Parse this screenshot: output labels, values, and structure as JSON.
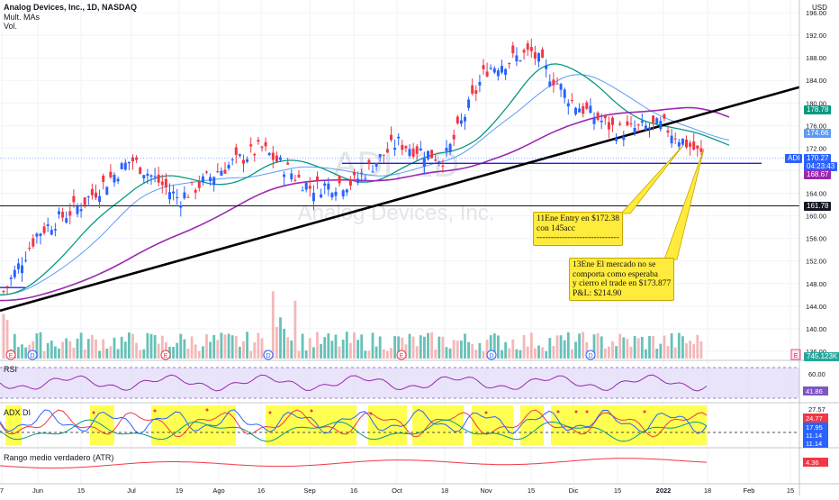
{
  "header": {
    "title": "Analog Devices, Inc., 1D, NASDAQ",
    "indicators": [
      "Mult. MAs",
      "Vol."
    ],
    "currency": "USD",
    "watermark_symbol": "ADI, 1D",
    "watermark_name": "Analog Devices, Inc."
  },
  "price_axis": {
    "ticks": [
      "196.00",
      "192.00",
      "188.00",
      "184.00",
      "180.00",
      "176.00",
      "172.00",
      "168.00",
      "164.00",
      "160.00",
      "156.00",
      "152.00",
      "148.00",
      "144.00",
      "140.00",
      "136.00"
    ],
    "ylim": [
      134,
      198
    ]
  },
  "time_axis": {
    "ticks": [
      "7",
      "Jun",
      "15",
      "Jul",
      "19",
      "Ago",
      "16",
      "Sep",
      "16",
      "Oct",
      "18",
      "Nov",
      "15",
      "Dic",
      "15",
      "2022",
      "18",
      "Feb",
      "15"
    ]
  },
  "price_labels": {
    "ma_top": "178.78",
    "ma_mid": "174.66",
    "symbol": "ADI",
    "last_price": "170.27",
    "countdown": "04:23:43",
    "ma_long": "168.67",
    "h_level": "161.78",
    "volume": "745.123K"
  },
  "callouts": {
    "entry": "11Ene Entry en $172.38\ncon 145acc\n-----------------------------",
    "exit": "13Ene El mercado no se\ncomporta como esperaba\ny cierro el trade en $173.877\nP&L: $214.90"
  },
  "panes": {
    "rsi": {
      "label": "RSI",
      "ticks": [
        "60.00",
        "41.86"
      ],
      "value": "41.86",
      "color": "#7e57c2"
    },
    "adx": {
      "label": "ADX DI",
      "ticks": [
        "27.57",
        "24.77",
        "17.95",
        "11.14",
        "11.14"
      ],
      "colors": [
        "#000000",
        "#f23645",
        "#2962ff",
        "#131722",
        "#131722"
      ]
    },
    "atr": {
      "label": "Rango medio verdadero (ATR)",
      "value": "4.36",
      "color": "#f23645"
    }
  },
  "events": {
    "earnings_marker": "E",
    "dividend_marker": "D"
  },
  "colors": {
    "up": "#2962ff",
    "down": "#f23645",
    "ma_green": "#089981",
    "ma_blue": "#5b9cf6",
    "ma_purple": "#9c27b0",
    "trend": "#000000",
    "hline": "#1e22e8",
    "vol_up": "#26a69a",
    "vol_down": "#ef9a9a",
    "adx_band": "#ffff33",
    "rsi_band": "#d7cdf5"
  },
  "chart_data": {
    "type": "line",
    "title": "Analog Devices, Inc., 1D, NASDAQ",
    "ylim": [
      134,
      198
    ],
    "x": [
      "2021-05-07",
      "2021-06-01",
      "2021-06-15",
      "2021-07-01",
      "2021-07-19",
      "2021-08-02",
      "2021-08-16",
      "2021-09-01",
      "2021-09-16",
      "2021-10-01",
      "2021-10-18",
      "2021-11-01",
      "2021-11-15",
      "2021-12-01",
      "2021-12-15",
      "2022-01-03",
      "2022-01-13"
    ],
    "series": [
      {
        "name": "ADI",
        "values": [
          146,
          157,
          162,
          170,
          163,
          168,
          172,
          165,
          166,
          173,
          170,
          186,
          189,
          180,
          175,
          176,
          170.27
        ]
      }
    ],
    "annotations": [
      {
        "text": "11Ene Entry en $172.38 con 145acc",
        "price": 172.38
      },
      {
        "text": "13Ene El mercado no se comporta como esperaba y cierro el trade en $173.877 P&L: $214.90",
        "price": 173.877
      }
    ],
    "hlines": [
      161.78,
      169.3
    ]
  }
}
